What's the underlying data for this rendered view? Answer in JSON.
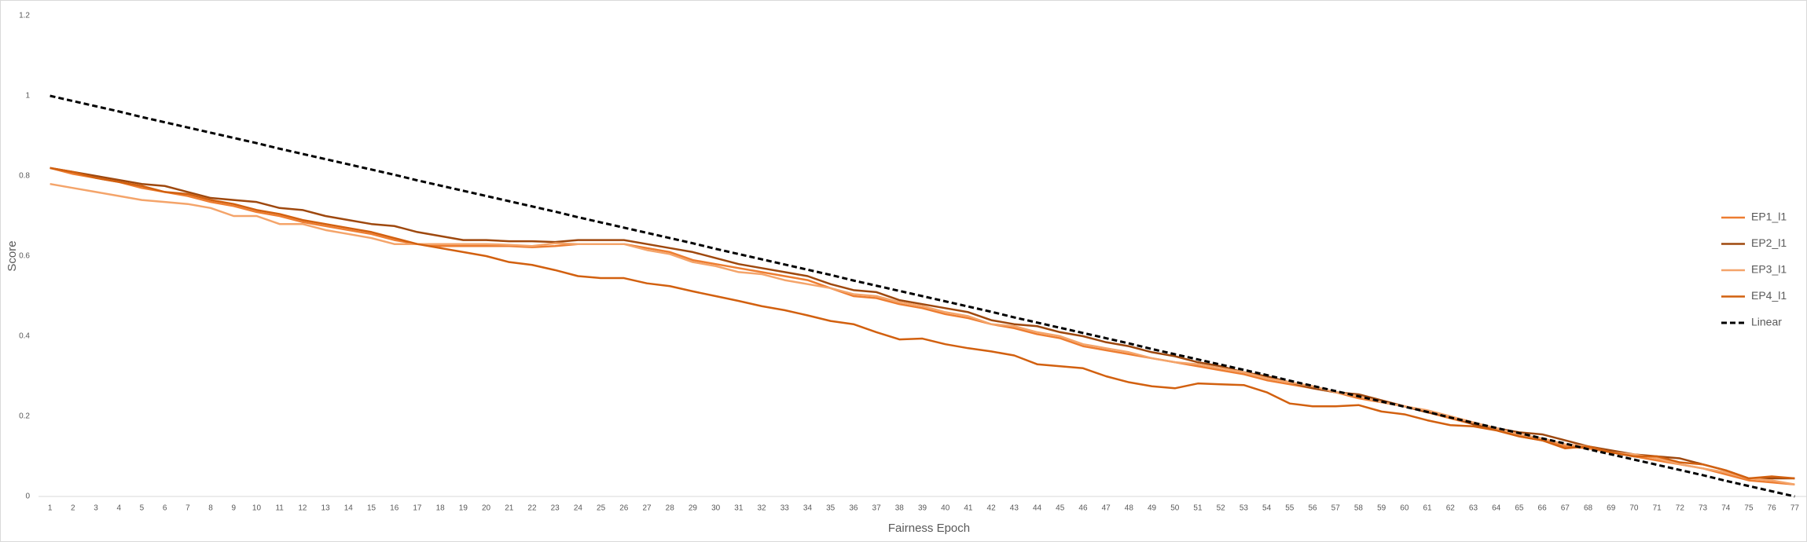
{
  "chart_data": {
    "type": "line",
    "x_label": "Fairness Epoch",
    "y_label": "Score",
    "categories": [
      1,
      2,
      3,
      4,
      5,
      6,
      7,
      8,
      9,
      10,
      11,
      12,
      13,
      14,
      15,
      16,
      17,
      18,
      19,
      20,
      21,
      22,
      23,
      24,
      25,
      26,
      27,
      28,
      29,
      30,
      31,
      32,
      33,
      34,
      35,
      36,
      37,
      38,
      39,
      40,
      41,
      42,
      43,
      44,
      45,
      46,
      47,
      48,
      49,
      50,
      51,
      52,
      53,
      54,
      55,
      56,
      57,
      58,
      59,
      60,
      61,
      62,
      63,
      64,
      65,
      66,
      67,
      68,
      69,
      70,
      71,
      72,
      73,
      74,
      75,
      76,
      77
    ],
    "ylim": [
      0,
      1.2
    ],
    "yticks": [
      0,
      0.2,
      0.4,
      0.6,
      0.8,
      1,
      1.2
    ],
    "grid": false,
    "legend": "right",
    "series": [
      {
        "name": "EP1_l1",
        "color": "#ed7d31",
        "values": [
          0.82,
          0.805,
          0.795,
          0.785,
          0.77,
          0.76,
          0.75,
          0.735,
          0.725,
          0.71,
          0.7,
          0.685,
          0.675,
          0.665,
          0.655,
          0.64,
          0.63,
          0.625,
          0.625,
          0.625,
          0.625,
          0.622,
          0.625,
          0.63,
          0.63,
          0.63,
          0.62,
          0.61,
          0.59,
          0.58,
          0.57,
          0.56,
          0.55,
          0.54,
          0.52,
          0.5,
          0.495,
          0.48,
          0.47,
          0.455,
          0.445,
          0.43,
          0.42,
          0.405,
          0.395,
          0.375,
          0.365,
          0.355,
          0.345,
          0.335,
          0.325,
          0.315,
          0.305,
          0.29,
          0.28,
          0.27,
          0.26,
          0.245,
          0.235,
          0.225,
          0.21,
          0.195,
          0.18,
          0.165,
          0.15,
          0.14,
          0.125,
          0.12,
          0.11,
          0.1,
          0.09,
          0.08,
          0.07,
          0.055,
          0.04,
          0.035,
          0.03
        ]
      },
      {
        "name": "EP2_l1",
        "color": "#9e480e",
        "values": [
          0.82,
          0.81,
          0.8,
          0.79,
          0.78,
          0.775,
          0.76,
          0.745,
          0.74,
          0.735,
          0.72,
          0.715,
          0.7,
          0.69,
          0.68,
          0.675,
          0.66,
          0.65,
          0.64,
          0.64,
          0.637,
          0.637,
          0.635,
          0.64,
          0.64,
          0.64,
          0.63,
          0.62,
          0.61,
          0.595,
          0.58,
          0.57,
          0.56,
          0.55,
          0.53,
          0.515,
          0.51,
          0.49,
          0.48,
          0.47,
          0.46,
          0.44,
          0.43,
          0.425,
          0.41,
          0.4,
          0.385,
          0.375,
          0.36,
          0.35,
          0.335,
          0.325,
          0.31,
          0.3,
          0.285,
          0.27,
          0.26,
          0.255,
          0.24,
          0.225,
          0.21,
          0.2,
          0.18,
          0.17,
          0.16,
          0.155,
          0.14,
          0.125,
          0.115,
          0.105,
          0.1,
          0.095,
          0.08,
          0.065,
          0.045,
          0.045,
          0.045
        ]
      },
      {
        "name": "EP3_l1",
        "color": "#f4a46a",
        "values": [
          0.78,
          0.77,
          0.76,
          0.75,
          0.74,
          0.735,
          0.73,
          0.72,
          0.7,
          0.7,
          0.68,
          0.68,
          0.665,
          0.655,
          0.645,
          0.63,
          0.63,
          0.63,
          0.63,
          0.63,
          0.628,
          0.625,
          0.632,
          0.63,
          0.63,
          0.63,
          0.615,
          0.605,
          0.585,
          0.575,
          0.56,
          0.555,
          0.54,
          0.53,
          0.52,
          0.505,
          0.5,
          0.485,
          0.475,
          0.46,
          0.45,
          0.43,
          0.425,
          0.41,
          0.4,
          0.38,
          0.37,
          0.36,
          0.345,
          0.335,
          0.33,
          0.32,
          0.31,
          0.295,
          0.285,
          0.275,
          0.26,
          0.25,
          0.235,
          0.225,
          0.215,
          0.2,
          0.185,
          0.17,
          0.155,
          0.145,
          0.13,
          0.125,
          0.11,
          0.105,
          0.095,
          0.08,
          0.07,
          0.06,
          0.045,
          0.04,
          0.03
        ]
      },
      {
        "name": "EP4_l1",
        "color": "#d2600f",
        "values": [
          0.82,
          0.81,
          0.795,
          0.785,
          0.775,
          0.76,
          0.755,
          0.74,
          0.73,
          0.715,
          0.705,
          0.69,
          0.68,
          0.67,
          0.66,
          0.645,
          0.63,
          0.62,
          0.61,
          0.6,
          0.585,
          0.578,
          0.565,
          0.55,
          0.545,
          0.545,
          0.532,
          0.525,
          0.512,
          0.5,
          0.488,
          0.475,
          0.465,
          0.452,
          0.438,
          0.43,
          0.41,
          0.392,
          0.394,
          0.38,
          0.37,
          0.362,
          0.352,
          0.33,
          0.325,
          0.32,
          0.3,
          0.285,
          0.275,
          0.27,
          0.282,
          0.28,
          0.278,
          0.26,
          0.232,
          0.225,
          0.225,
          0.228,
          0.212,
          0.205,
          0.19,
          0.178,
          0.175,
          0.165,
          0.15,
          0.14,
          0.12,
          0.125,
          0.11,
          0.1,
          0.1,
          0.085,
          0.08,
          0.065,
          0.045,
          0.05,
          0.045
        ]
      },
      {
        "name": "Linear",
        "color": "#000000",
        "dashed": true,
        "values": [
          1.0,
          0.987,
          0.974,
          0.961,
          0.947,
          0.934,
          0.921,
          0.908,
          0.895,
          0.882,
          0.868,
          0.855,
          0.842,
          0.829,
          0.816,
          0.803,
          0.789,
          0.776,
          0.763,
          0.75,
          0.737,
          0.724,
          0.711,
          0.697,
          0.684,
          0.671,
          0.658,
          0.645,
          0.632,
          0.618,
          0.605,
          0.592,
          0.579,
          0.566,
          0.553,
          0.539,
          0.526,
          0.513,
          0.5,
          0.487,
          0.474,
          0.461,
          0.447,
          0.434,
          0.421,
          0.408,
          0.395,
          0.382,
          0.368,
          0.355,
          0.342,
          0.329,
          0.316,
          0.303,
          0.289,
          0.276,
          0.263,
          0.25,
          0.237,
          0.224,
          0.211,
          0.197,
          0.184,
          0.171,
          0.158,
          0.145,
          0.132,
          0.118,
          0.105,
          0.092,
          0.079,
          0.066,
          0.053,
          0.039,
          0.026,
          0.013,
          0
        ]
      }
    ]
  }
}
